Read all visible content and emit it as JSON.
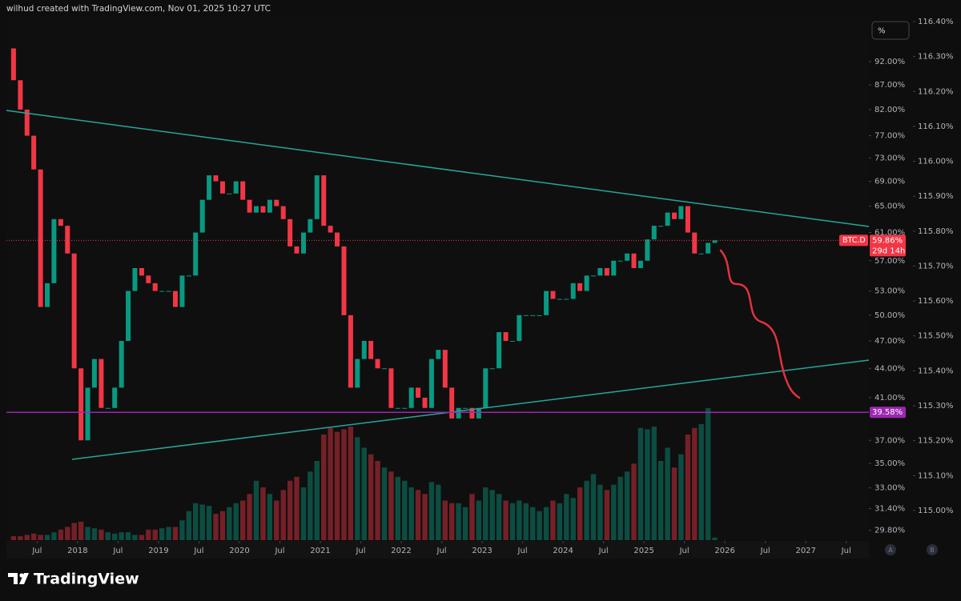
{
  "header": "wilhud created with TradingView.com, Nov 01, 2025 10:27 UTC",
  "footer": {
    "brand": "TradingView"
  },
  "controls": {
    "scale_button": "%",
    "axis_buttons": [
      "A",
      "B"
    ]
  },
  "chart_data": {
    "type": "candlestick",
    "symbol": "BTC.D",
    "countdown": "29d 14h",
    "price": {
      "value": 59.86,
      "label": "59.86%"
    },
    "level": {
      "value": 39.58,
      "label": "39.58%"
    },
    "up_color": "#089981",
    "down_color": "#f23645",
    "level_color": "#9c27b0",
    "log_scale": true,
    "x": [
      2017.208,
      2017.292,
      2017.375,
      2017.458,
      2017.542,
      2017.625,
      2017.708,
      2017.792,
      2017.875,
      2017.958,
      2018.042,
      2018.125,
      2018.208,
      2018.292,
      2018.375,
      2018.458,
      2018.542,
      2018.625,
      2018.708,
      2018.792,
      2018.875,
      2018.958,
      2019.042,
      2019.125,
      2019.208,
      2019.292,
      2019.375,
      2019.458,
      2019.542,
      2019.625,
      2019.708,
      2019.792,
      2019.875,
      2019.958,
      2020.042,
      2020.125,
      2020.208,
      2020.292,
      2020.375,
      2020.458,
      2020.542,
      2020.625,
      2020.708,
      2020.792,
      2020.875,
      2020.958,
      2021.042,
      2021.125,
      2021.208,
      2021.292,
      2021.375,
      2021.458,
      2021.542,
      2021.625,
      2021.708,
      2021.792,
      2021.875,
      2021.958,
      2022.042,
      2022.125,
      2022.208,
      2022.292,
      2022.375,
      2022.458,
      2022.542,
      2022.625,
      2022.708,
      2022.792,
      2022.875,
      2022.958,
      2023.042,
      2023.125,
      2023.208,
      2023.292,
      2023.375,
      2023.458,
      2023.542,
      2023.625,
      2023.708,
      2023.792,
      2023.875,
      2023.958,
      2024.042,
      2024.125,
      2024.208,
      2024.292,
      2024.375,
      2024.458,
      2024.542,
      2024.625,
      2024.708,
      2024.792,
      2024.875,
      2024.958,
      2025.042,
      2025.125,
      2025.208,
      2025.292,
      2025.375,
      2025.458,
      2025.542,
      2025.625,
      2025.708,
      2025.792,
      2025.875
    ],
    "open": [
      95,
      88,
      82,
      77,
      71,
      51,
      54,
      63,
      62,
      58,
      44,
      37,
      42,
      45,
      40,
      40,
      42,
      47,
      53,
      56,
      55,
      54,
      53,
      53,
      53,
      51,
      55,
      55,
      61,
      66,
      70,
      69,
      67,
      67,
      69,
      66,
      64,
      65,
      64,
      66,
      65,
      63,
      59,
      58,
      61,
      63,
      70,
      62,
      61,
      59,
      50,
      42,
      45,
      47,
      45,
      44,
      44,
      40,
      40,
      40,
      42,
      41,
      40,
      45,
      46,
      42,
      39,
      40,
      40,
      39,
      40,
      44,
      44,
      48,
      47,
      47,
      50,
      50,
      50,
      50,
      53,
      52,
      52,
      52,
      54,
      53,
      55,
      55,
      56,
      55,
      57,
      57,
      58,
      56,
      57,
      60,
      62,
      62,
      64,
      63,
      65,
      61,
      58,
      58,
      59.5
    ],
    "close": [
      88,
      82,
      77,
      71,
      51,
      54,
      63,
      62,
      58,
      44,
      37,
      42,
      45,
      40,
      40,
      42,
      47,
      53,
      56,
      55,
      54,
      53,
      53,
      53,
      51,
      55,
      55,
      61,
      66,
      70,
      69,
      67,
      67,
      69,
      66,
      64,
      65,
      64,
      66,
      65,
      63,
      59,
      58,
      61,
      63,
      70,
      62,
      61,
      59,
      50,
      42,
      45,
      47,
      45,
      44,
      44,
      40,
      40,
      40,
      42,
      41,
      40,
      45,
      46,
      42,
      39,
      40,
      40,
      39,
      40,
      44,
      44,
      48,
      47,
      47,
      50,
      50,
      50,
      50,
      53,
      52,
      52,
      52,
      54,
      53,
      55,
      55,
      56,
      55,
      57,
      57,
      58,
      56,
      57,
      60,
      62,
      62,
      64,
      63,
      65,
      61,
      58,
      58,
      59.5,
      59.86
    ],
    "volume": [
      3,
      3,
      4,
      5,
      4,
      4,
      6,
      8,
      10,
      13,
      14,
      10,
      9,
      8,
      6,
      5,
      6,
      6,
      4,
      4,
      8,
      8,
      9,
      10,
      10,
      15,
      22,
      28,
      27,
      26,
      20,
      22,
      25,
      28,
      30,
      35,
      45,
      40,
      35,
      30,
      38,
      45,
      48,
      40,
      52,
      60,
      80,
      85,
      82,
      84,
      86,
      78,
      70,
      65,
      60,
      55,
      52,
      48,
      45,
      40,
      38,
      35,
      44,
      42,
      30,
      28,
      28,
      25,
      35,
      30,
      40,
      38,
      35,
      30,
      28,
      30,
      28,
      25,
      22,
      25,
      30,
      28,
      35,
      32,
      40,
      45,
      50,
      42,
      38,
      42,
      48,
      52,
      58,
      85,
      84,
      86,
      60,
      70,
      55,
      65,
      80,
      85,
      88,
      100,
      2
    ],
    "xlim": [
      2017.12,
      2027.78
    ],
    "xticks": [
      {
        "value": 2017.5,
        "label": "Jul"
      },
      2018,
      {
        "value": 2018.5,
        "label": "Jul"
      },
      2019,
      {
        "value": 2019.5,
        "label": "Jul"
      },
      2020,
      {
        "value": 2020.5,
        "label": "Jul"
      },
      2021,
      {
        "value": 2021.5,
        "label": "Jul"
      },
      2022,
      {
        "value": 2022.5,
        "label": "Jul"
      },
      2023,
      {
        "value": 2023.5,
        "label": "Jul"
      },
      2024,
      {
        "value": 2024.5,
        "label": "Jul"
      },
      2025,
      {
        "value": 2025.5,
        "label": "Jul"
      },
      2026,
      {
        "value": 2026.5,
        "label": "Jul"
      },
      2027,
      {
        "value": 2027.5,
        "label": "Jul"
      }
    ],
    "ylim": [
      29.1,
      102.7
    ],
    "yticks": [
      {
        "value": 92,
        "label": "92.00%"
      },
      {
        "value": 87,
        "label": "87.00%"
      },
      {
        "value": 82,
        "label": "82.00%"
      },
      {
        "value": 77,
        "label": "77.00%"
      },
      {
        "value": 73,
        "label": "73.00%"
      },
      {
        "value": 69,
        "label": "69.00%"
      },
      {
        "value": 65,
        "label": "65.00%"
      },
      {
        "value": 61,
        "label": "61.00%"
      },
      {
        "value": 57,
        "label": "57.00%"
      },
      {
        "value": 53,
        "label": "53.00%"
      },
      {
        "value": 50,
        "label": "50.00%"
      },
      {
        "value": 47,
        "label": "47.00%"
      },
      {
        "value": 44,
        "label": "44.00%"
      },
      {
        "value": 41,
        "label": "41.00%"
      },
      {
        "value": 37,
        "label": "37.00%"
      },
      {
        "value": 35,
        "label": "35.00%"
      },
      {
        "value": 33,
        "label": "33.00%"
      },
      {
        "value": 31.4,
        "label": "31.40%"
      },
      {
        "value": 29.8,
        "label": "29.80%"
      }
    ],
    "y2lim": [
      114.915,
      116.416
    ],
    "y2ticks": [
      {
        "value": 116.4,
        "label": "116.40%"
      },
      {
        "value": 116.3,
        "label": "116.30%"
      },
      {
        "value": 116.2,
        "label": "116.20%"
      },
      {
        "value": 116.1,
        "label": "116.10%"
      },
      {
        "value": 116.0,
        "label": "116.00%"
      },
      {
        "value": 115.9,
        "label": "115.90%"
      },
      {
        "value": 115.8,
        "label": "115.80%"
      },
      {
        "value": 115.7,
        "label": "115.70%"
      },
      {
        "value": 115.6,
        "label": "115.60%"
      },
      {
        "value": 115.5,
        "label": "115.50%"
      },
      {
        "value": 115.4,
        "label": "115.40%"
      },
      {
        "value": 115.3,
        "label": "115.30%"
      },
      {
        "value": 115.2,
        "label": "115.20%"
      },
      {
        "value": 115.1,
        "label": "115.10%"
      },
      {
        "value": 115.0,
        "label": "115.00%"
      }
    ]
  }
}
